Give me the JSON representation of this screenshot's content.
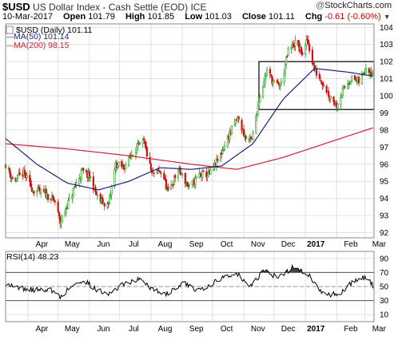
{
  "header": {
    "symbol": "$USD",
    "instrument": "US Dollar Index - Cash Settle (EOD)",
    "exchange": "ICE",
    "brand": "StockCharts.com",
    "date": "10-Mar-2017",
    "quote": {
      "open_label": "Open",
      "open": "101.79",
      "high_label": "High",
      "high": "101.85",
      "low_label": "Low",
      "low": "101.03",
      "close_label": "Close",
      "close": "101.11",
      "chg_label": "Chg",
      "chg": "-0.61 (-0.60%)"
    }
  },
  "colors": {
    "ma50": "#1f1f7a",
    "ma200": "#cc2233",
    "up": "#1a9e1a",
    "down": "#d01010",
    "rsi_fill": "#444444",
    "grid": "#e0e0e0",
    "box": "#000000"
  },
  "chart_data": [
    {
      "type": "candlestick",
      "legend": {
        "price": "$USD (Daily) 101.11",
        "ma50": "MA(50) 101.14",
        "ma200": "MA(200) 98.15"
      },
      "ylim": [
        91.7,
        104.2
      ],
      "y_ticks": [
        92,
        93,
        94,
        95,
        96,
        97,
        98,
        99,
        100,
        101,
        102,
        103,
        104
      ],
      "x_months": [
        "Apr",
        "May",
        "Jun",
        "Jul",
        "Aug",
        "Sep",
        "Oct",
        "Nov",
        "Dec",
        "2017",
        "Feb",
        "Mar"
      ],
      "price_anchors": [
        {
          "t": "Mar 10",
          "v": 96.0
        },
        {
          "t": "Mar 18",
          "v": 95.0
        },
        {
          "t": "Mar 28",
          "v": 95.5
        },
        {
          "t": "Apr 6",
          "v": 94.5
        },
        {
          "t": "Apr 18",
          "v": 94.3
        },
        {
          "t": "Apr 28",
          "v": 93.8
        },
        {
          "t": "May 3",
          "v": 92.6
        },
        {
          "t": "May 10",
          "v": 93.6
        },
        {
          "t": "May 17",
          "v": 94.6
        },
        {
          "t": "May 25",
          "v": 95.6
        },
        {
          "t": "Jun 2",
          "v": 95.2
        },
        {
          "t": "Jun 10",
          "v": 93.9
        },
        {
          "t": "Jun 20",
          "v": 93.6
        },
        {
          "t": "Jun 27",
          "v": 96.0
        },
        {
          "t": "Jul 5",
          "v": 95.8
        },
        {
          "t": "Jul 15",
          "v": 96.8
        },
        {
          "t": "Jul 25",
          "v": 97.3
        },
        {
          "t": "Aug 2",
          "v": 95.4
        },
        {
          "t": "Aug 12",
          "v": 95.6
        },
        {
          "t": "Aug 18",
          "v": 94.3
        },
        {
          "t": "Aug 28",
          "v": 95.7
        },
        {
          "t": "Sep 8",
          "v": 94.6
        },
        {
          "t": "Sep 18",
          "v": 95.4
        },
        {
          "t": "Sep 28",
          "v": 95.4
        },
        {
          "t": "Oct 8",
          "v": 96.4
        },
        {
          "t": "Oct 18",
          "v": 97.8
        },
        {
          "t": "Oct 26",
          "v": 98.7
        },
        {
          "t": "Nov 3",
          "v": 97.5
        },
        {
          "t": "Nov 9",
          "v": 97.4
        },
        {
          "t": "Nov 16",
          "v": 99.8
        },
        {
          "t": "Nov 24",
          "v": 101.5
        },
        {
          "t": "Dec 2",
          "v": 100.6
        },
        {
          "t": "Dec 8",
          "v": 100.7
        },
        {
          "t": "Dec 15",
          "v": 102.6
        },
        {
          "t": "Dec 22",
          "v": 103.1
        },
        {
          "t": "Dec 30",
          "v": 102.4
        },
        {
          "t": "Jan 3",
          "v": 103.3
        },
        {
          "t": "Jan 10",
          "v": 101.5
        },
        {
          "t": "Jan 18",
          "v": 100.8
        },
        {
          "t": "Jan 24",
          "v": 100.1
        },
        {
          "t": "Feb 1",
          "v": 99.5
        },
        {
          "t": "Feb 8",
          "v": 100.4
        },
        {
          "t": "Feb 15",
          "v": 101.0
        },
        {
          "t": "Feb 24",
          "v": 100.8
        },
        {
          "t": "Mar 2",
          "v": 101.7
        },
        {
          "t": "Mar 6",
          "v": 101.5
        },
        {
          "t": "Mar 10",
          "v": 101.11
        }
      ],
      "ma50_anchors": [
        {
          "t": "Mar 10",
          "v": 97.5
        },
        {
          "t": "Apr 10",
          "v": 96.0
        },
        {
          "t": "May 10",
          "v": 94.9
        },
        {
          "t": "Jun 10",
          "v": 94.5
        },
        {
          "t": "Jul 10",
          "v": 95.0
        },
        {
          "t": "Aug 10",
          "v": 95.8
        },
        {
          "t": "Sep 10",
          "v": 95.7
        },
        {
          "t": "Oct 10",
          "v": 95.9
        },
        {
          "t": "Nov 10",
          "v": 97.2
        },
        {
          "t": "Dec 10",
          "v": 99.8
        },
        {
          "t": "Jan 10",
          "v": 101.6
        },
        {
          "t": "Feb 10",
          "v": 101.4
        },
        {
          "t": "Mar 10",
          "v": 101.14
        }
      ],
      "ma200_anchors": [
        {
          "t": "Mar 10",
          "v": 97.2
        },
        {
          "t": "May 10",
          "v": 96.9
        },
        {
          "t": "Jul 10",
          "v": 96.5
        },
        {
          "t": "Sep 10",
          "v": 96.0
        },
        {
          "t": "Oct 25",
          "v": 95.7
        },
        {
          "t": "Dec 10",
          "v": 96.4
        },
        {
          "t": "Jan 20",
          "v": 97.2
        },
        {
          "t": "Mar 10",
          "v": 98.15
        }
      ],
      "highlight_box": {
        "t_start": "Nov 16",
        "t_end": "Mar 10",
        "v_low": 99.2,
        "v_high": 102.0
      }
    },
    {
      "type": "line",
      "legend": "RSI(14) 48.23",
      "ylim": [
        0,
        100
      ],
      "y_ticks": [
        10,
        30,
        50,
        70,
        90
      ],
      "levels": [
        30,
        70
      ],
      "rsi_anchors": [
        {
          "t": "Mar 10",
          "v": 55
        },
        {
          "t": "Mar 22",
          "v": 48
        },
        {
          "t": "Apr 8",
          "v": 45
        },
        {
          "t": "Apr 22",
          "v": 47
        },
        {
          "t": "May 3",
          "v": 35
        },
        {
          "t": "May 14",
          "v": 50
        },
        {
          "t": "May 26",
          "v": 60
        },
        {
          "t": "Jun 8",
          "v": 45
        },
        {
          "t": "Jun 22",
          "v": 40
        },
        {
          "t": "Jul 6",
          "v": 55
        },
        {
          "t": "Jul 20",
          "v": 60
        },
        {
          "t": "Aug 4",
          "v": 45
        },
        {
          "t": "Aug 18",
          "v": 40
        },
        {
          "t": "Sep 2",
          "v": 55
        },
        {
          "t": "Sep 16",
          "v": 45
        },
        {
          "t": "Oct 2",
          "v": 55
        },
        {
          "t": "Oct 16",
          "v": 66
        },
        {
          "t": "Oct 26",
          "v": 68
        },
        {
          "t": "Nov 6",
          "v": 48
        },
        {
          "t": "Nov 22",
          "v": 74
        },
        {
          "t": "Dec 5",
          "v": 62
        },
        {
          "t": "Dec 20",
          "v": 78
        },
        {
          "t": "Jan 3",
          "v": 68
        },
        {
          "t": "Jan 18",
          "v": 40
        },
        {
          "t": "Feb 2",
          "v": 38
        },
        {
          "t": "Feb 16",
          "v": 55
        },
        {
          "t": "Mar 2",
          "v": 64
        },
        {
          "t": "Mar 6",
          "v": 58
        },
        {
          "t": "Mar 10",
          "v": 48.23
        }
      ]
    }
  ]
}
